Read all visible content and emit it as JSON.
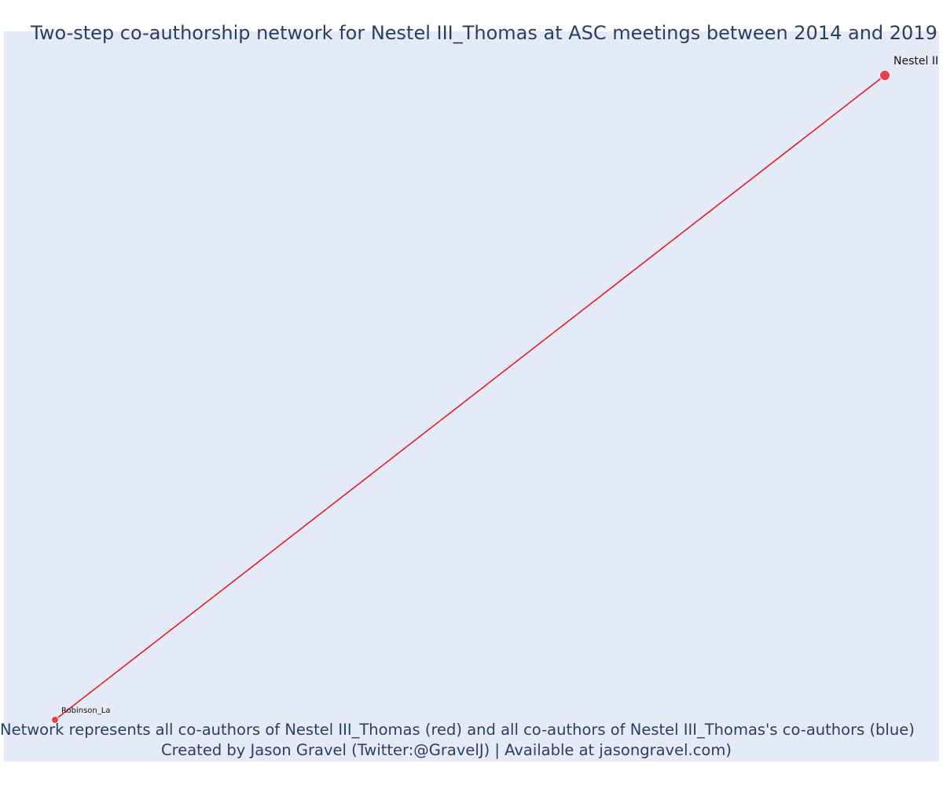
{
  "title": "Two-step co-authorship network for Nestel III_Thomas at ASC meetings between 2014 and 2019",
  "caption": {
    "line1": "Network represents all co-authors of Nestel III_Thomas (red) and all co-authors of Nestel III_Thomas's co-authors (blue)",
    "line2": "Created by Jason Gravel (Twitter:@GravelJ) | Available at jasongravel.com)"
  },
  "colors": {
    "background": "#e5ebf6",
    "edge": "#ee1111",
    "node_red": "#ef3b44",
    "text": "#2a3f5f"
  },
  "network": {
    "nodes": [
      {
        "id": "nestel",
        "label": "Nestel III",
        "group": "ego"
      },
      {
        "id": "robinson",
        "label": "Robinson_La",
        "group": "coauthor"
      }
    ],
    "edges": [
      {
        "source": "nestel",
        "target": "robinson"
      }
    ]
  }
}
